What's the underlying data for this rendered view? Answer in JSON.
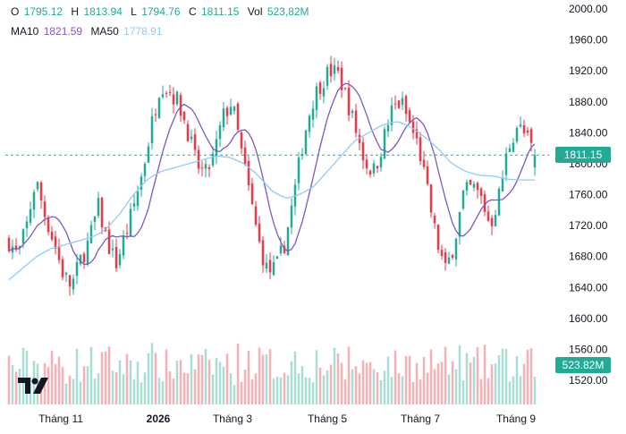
{
  "legend": {
    "o_label": "O",
    "o_value": "1795.12",
    "h_label": "H",
    "h_value": "1813.94",
    "l_label": "L",
    "l_value": "1794.76",
    "c_label": "C",
    "c_value": "1811.15",
    "vol_label": "Vol",
    "vol_value": "523,82M",
    "ma10_label": "MA10",
    "ma10_value": "1821.59",
    "ma50_label": "MA50",
    "ma50_value": "1778.91"
  },
  "badges": {
    "price": "1811.15",
    "volume": "523.82M"
  },
  "colors": {
    "up": "#22ab94",
    "down": "#f23645",
    "ma10": "#7e57c2",
    "ma50": "#90caf9",
    "price_line": "#22ab94"
  },
  "chart_data": {
    "type": "candlestick",
    "y_ticks": [
      "2000.00",
      "1960.00",
      "1920.00",
      "1880.00",
      "1840.00",
      "1800.00",
      "1760.00",
      "1720.00",
      "1680.00",
      "1640.00",
      "1600.00",
      "1560.00",
      "1520.00"
    ],
    "ylim": [
      1510,
      2010
    ],
    "x_labels": [
      "Tháng 11",
      "2026",
      "Tháng 3",
      "Tháng 5",
      "Tháng 7",
      "Tháng 9"
    ],
    "x_label_bold": [
      false,
      true,
      false,
      false,
      false,
      false
    ],
    "last_close": 1811.15,
    "close_path": [
      1700,
      1680,
      1720,
      1780,
      1735,
      1700,
      1660,
      1640,
      1675,
      1700,
      1745,
      1700,
      1670,
      1705,
      1745,
      1790,
      1850,
      1905,
      1895,
      1880,
      1845,
      1800,
      1785,
      1810,
      1860,
      1880,
      1820,
      1760,
      1700,
      1660,
      1665,
      1700,
      1760,
      1830,
      1880,
      1905,
      1920,
      1915,
      1880,
      1840,
      1800,
      1790,
      1830,
      1870,
      1880,
      1850,
      1820,
      1760,
      1700,
      1660,
      1700,
      1760,
      1770,
      1755,
      1720,
      1760,
      1820,
      1850,
      1835,
      1811.15
    ],
    "ma50_path": [
      1650,
      1665,
      1680,
      1690,
      1695,
      1700,
      1705,
      1715,
      1735,
      1760,
      1780,
      1790,
      1795,
      1800,
      1805,
      1810,
      1808,
      1800,
      1785,
      1765,
      1755,
      1760,
      1770,
      1790,
      1810,
      1830,
      1840,
      1850,
      1855,
      1848,
      1835,
      1820,
      1800,
      1790,
      1785,
      1784,
      1780,
      1779,
      1779
    ],
    "volume_range": [
      280,
      640
    ],
    "volume_last": 523.82
  }
}
